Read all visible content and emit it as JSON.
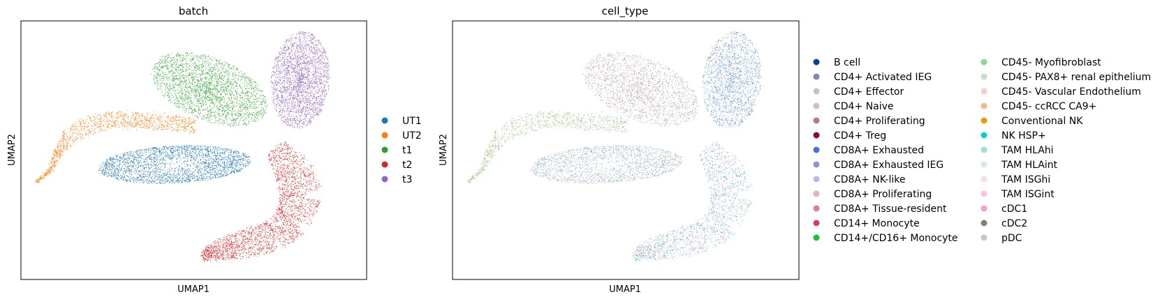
{
  "chart_data": [
    {
      "type": "scatter",
      "title": "batch",
      "xlabel": "UMAP1",
      "ylabel": "UMAP2",
      "xticks": "none",
      "yticks": "none",
      "legend_placement": "right",
      "series": [
        {
          "name": "UT1",
          "color": "#1f77b4"
        },
        {
          "name": "UT2",
          "color": "#ff7f0e"
        },
        {
          "name": "t1",
          "color": "#2ca02c"
        },
        {
          "name": "t2",
          "color": "#d62728"
        },
        {
          "name": "t3",
          "color": "#9467bd"
        }
      ]
    },
    {
      "type": "scatter",
      "title": "cell_type",
      "xlabel": "UMAP1",
      "ylabel": "UMAP2",
      "xticks": "none",
      "yticks": "none",
      "legend_placement": "right",
      "legend_columns": 2,
      "series": [
        {
          "name": "B cell",
          "color": "#023fa5"
        },
        {
          "name": "CD4+ Activated IEG",
          "color": "#7d87b9"
        },
        {
          "name": "CD4+ Effector",
          "color": "#bec1d4"
        },
        {
          "name": "CD4+ Naive",
          "color": "#d6bcc0"
        },
        {
          "name": "CD4+ Proliferating",
          "color": "#bb7784"
        },
        {
          "name": "CD4+ Treg",
          "color": "#8e063b"
        },
        {
          "name": "CD8A+ Exhausted",
          "color": "#4a6fe3"
        },
        {
          "name": "CD8A+ Exhausted IEG",
          "color": "#8595e1"
        },
        {
          "name": "CD8A+ NK-like",
          "color": "#b5bbe3"
        },
        {
          "name": "CD8A+ Proliferating",
          "color": "#e6afb9"
        },
        {
          "name": "CD8A+ Tissue-resident",
          "color": "#e07b91"
        },
        {
          "name": "CD14+ Monocyte",
          "color": "#d33f6a"
        },
        {
          "name": "CD14+/CD16+ Monocyte",
          "color": "#11c638"
        },
        {
          "name": "CD45- Myofibroblast",
          "color": "#8dd593"
        },
        {
          "name": "CD45- PAX8+ renal epithelium",
          "color": "#c6dec7"
        },
        {
          "name": "CD45- Vascular Endothelium",
          "color": "#ead3c6"
        },
        {
          "name": "CD45- ccRCC CA9+",
          "color": "#f0b98d"
        },
        {
          "name": "Conventional NK",
          "color": "#ef9708"
        },
        {
          "name": "NK HSP+",
          "color": "#0fcfc0"
        },
        {
          "name": "TAM HLAhi",
          "color": "#9cded6"
        },
        {
          "name": "TAM HLAint",
          "color": "#d5eae7"
        },
        {
          "name": "TAM ISGhi",
          "color": "#f3e1eb"
        },
        {
          "name": "TAM ISGint",
          "color": "#f6c4e1"
        },
        {
          "name": "cDC1",
          "color": "#f79cd4"
        },
        {
          "name": "cDC2",
          "color": "#7f7f7f"
        },
        {
          "name": "pDC",
          "color": "#c7c7c7"
        }
      ]
    }
  ]
}
